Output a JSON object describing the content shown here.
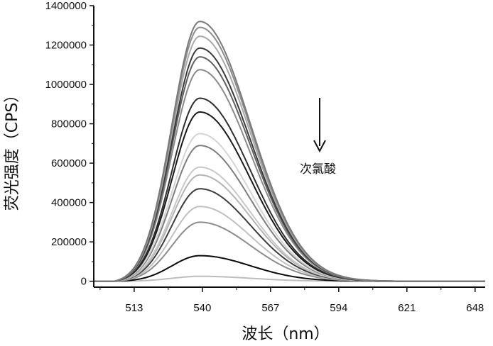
{
  "chart_data": {
    "type": "line",
    "xlabel": "波长（nm）",
    "ylabel": "荧光强度（CPS）",
    "xlim": [
      497,
      652
    ],
    "ylim": [
      -30000,
      1400000
    ],
    "x_ticks": [
      513,
      540,
      567,
      594,
      621,
      648
    ],
    "y_ticks": [
      0,
      200000,
      400000,
      600000,
      800000,
      1000000,
      1200000,
      1400000
    ],
    "x_tick_labels": [
      "513",
      "540",
      "567",
      "594",
      "621",
      "648"
    ],
    "y_tick_labels": [
      "0",
      "200000",
      "400000",
      "600000",
      "800000",
      "1000000",
      "1200000",
      "1400000"
    ],
    "grid": false,
    "peak_wavelength": 539,
    "annotation": {
      "text": "次氯酸",
      "arrow_direction": "down"
    },
    "series": [
      {
        "peak": 1320000,
        "color": "#7a7a7a"
      },
      {
        "peak": 1290000,
        "color": "#8c8c8c"
      },
      {
        "peak": 1245000,
        "color": "#a8a8a8"
      },
      {
        "peak": 1185000,
        "color": "#3a3a3a"
      },
      {
        "peak": 1140000,
        "color": "#606060"
      },
      {
        "peak": 1075000,
        "color": "#8a8a8a"
      },
      {
        "peak": 930000,
        "color": "#2e2e2e"
      },
      {
        "peak": 860000,
        "color": "#1a1a1a"
      },
      {
        "peak": 750000,
        "color": "#d4d4d4"
      },
      {
        "peak": 690000,
        "color": "#7e7e7e"
      },
      {
        "peak": 580000,
        "color": "#c8c8c8"
      },
      {
        "peak": 540000,
        "color": "#b4b4b4"
      },
      {
        "peak": 470000,
        "color": "#3c3c3c"
      },
      {
        "peak": 380000,
        "color": "#c0c0c0"
      },
      {
        "peak": 300000,
        "color": "#8c8c8c"
      },
      {
        "peak": 130000,
        "color": "#0a0a0a"
      },
      {
        "peak": 25000,
        "color": "#bdbdbd"
      }
    ]
  }
}
